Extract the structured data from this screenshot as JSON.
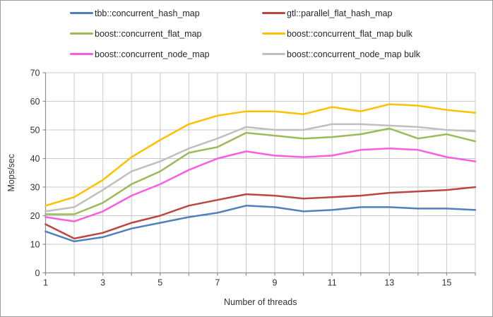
{
  "chart_data": {
    "type": "line",
    "title": "",
    "xlabel": "Number of threads",
    "ylabel": "Mops/sec",
    "x": [
      1,
      2,
      3,
      4,
      5,
      6,
      7,
      8,
      9,
      10,
      11,
      12,
      13,
      14,
      15,
      16
    ],
    "xlim": [
      1,
      16
    ],
    "ylim": [
      0,
      70
    ],
    "ytick_interval": 10,
    "xtick_labels": [
      1,
      3,
      5,
      7,
      9,
      11,
      13,
      15
    ],
    "grid": true,
    "legend_position": "top-left, 2 columns",
    "series": [
      {
        "name": "tbb::concurrent_hash_map",
        "color": "#4F81BD",
        "values": [
          14.5,
          11,
          12.5,
          15.5,
          17.5,
          19.5,
          21,
          23.5,
          23,
          21.5,
          22,
          23,
          23,
          22.5,
          22.5,
          22
        ]
      },
      {
        "name": "gtl::parallel_flat_hash_map",
        "color": "#BB4642",
        "values": [
          17,
          12,
          14,
          17.5,
          20,
          23.5,
          25.5,
          27.5,
          27,
          26,
          26.5,
          27,
          28,
          28.5,
          29,
          30
        ]
      },
      {
        "name": "boost::concurrent_flat_map",
        "color": "#9BBB59",
        "values": [
          20.5,
          20.5,
          24.5,
          31,
          35.5,
          42,
          44,
          49,
          48,
          47,
          47.5,
          48.5,
          50.5,
          47,
          48.5,
          46
        ]
      },
      {
        "name": "boost::concurrent_flat_map bulk",
        "color": "#FFC000",
        "values": [
          23.5,
          26.5,
          32.5,
          40.5,
          46.5,
          52,
          55,
          56.5,
          56.5,
          55.5,
          58,
          56.5,
          59,
          58.5,
          57,
          56
        ]
      },
      {
        "name": "boost::concurrent_node_map",
        "color": "#FA5EE0",
        "values": [
          19.5,
          18,
          21.5,
          27,
          31,
          36,
          40,
          42.5,
          41,
          40.5,
          41,
          43,
          43.5,
          43,
          40.5,
          39
        ]
      },
      {
        "name": "boost::concurrent_node_map bulk",
        "color": "#BFBFBF",
        "values": [
          21.5,
          23,
          29,
          35.5,
          39,
          43.5,
          47,
          51,
          50,
          50,
          52,
          52,
          51.5,
          51,
          50,
          49.5
        ]
      }
    ]
  },
  "colors": {
    "text": "#3d3d3d",
    "tick_text": "#333333",
    "grid": "#c9c9c9",
    "axis": "#8e8e8e",
    "frame_border": "#9d9d9d",
    "background": "#ffffff"
  }
}
